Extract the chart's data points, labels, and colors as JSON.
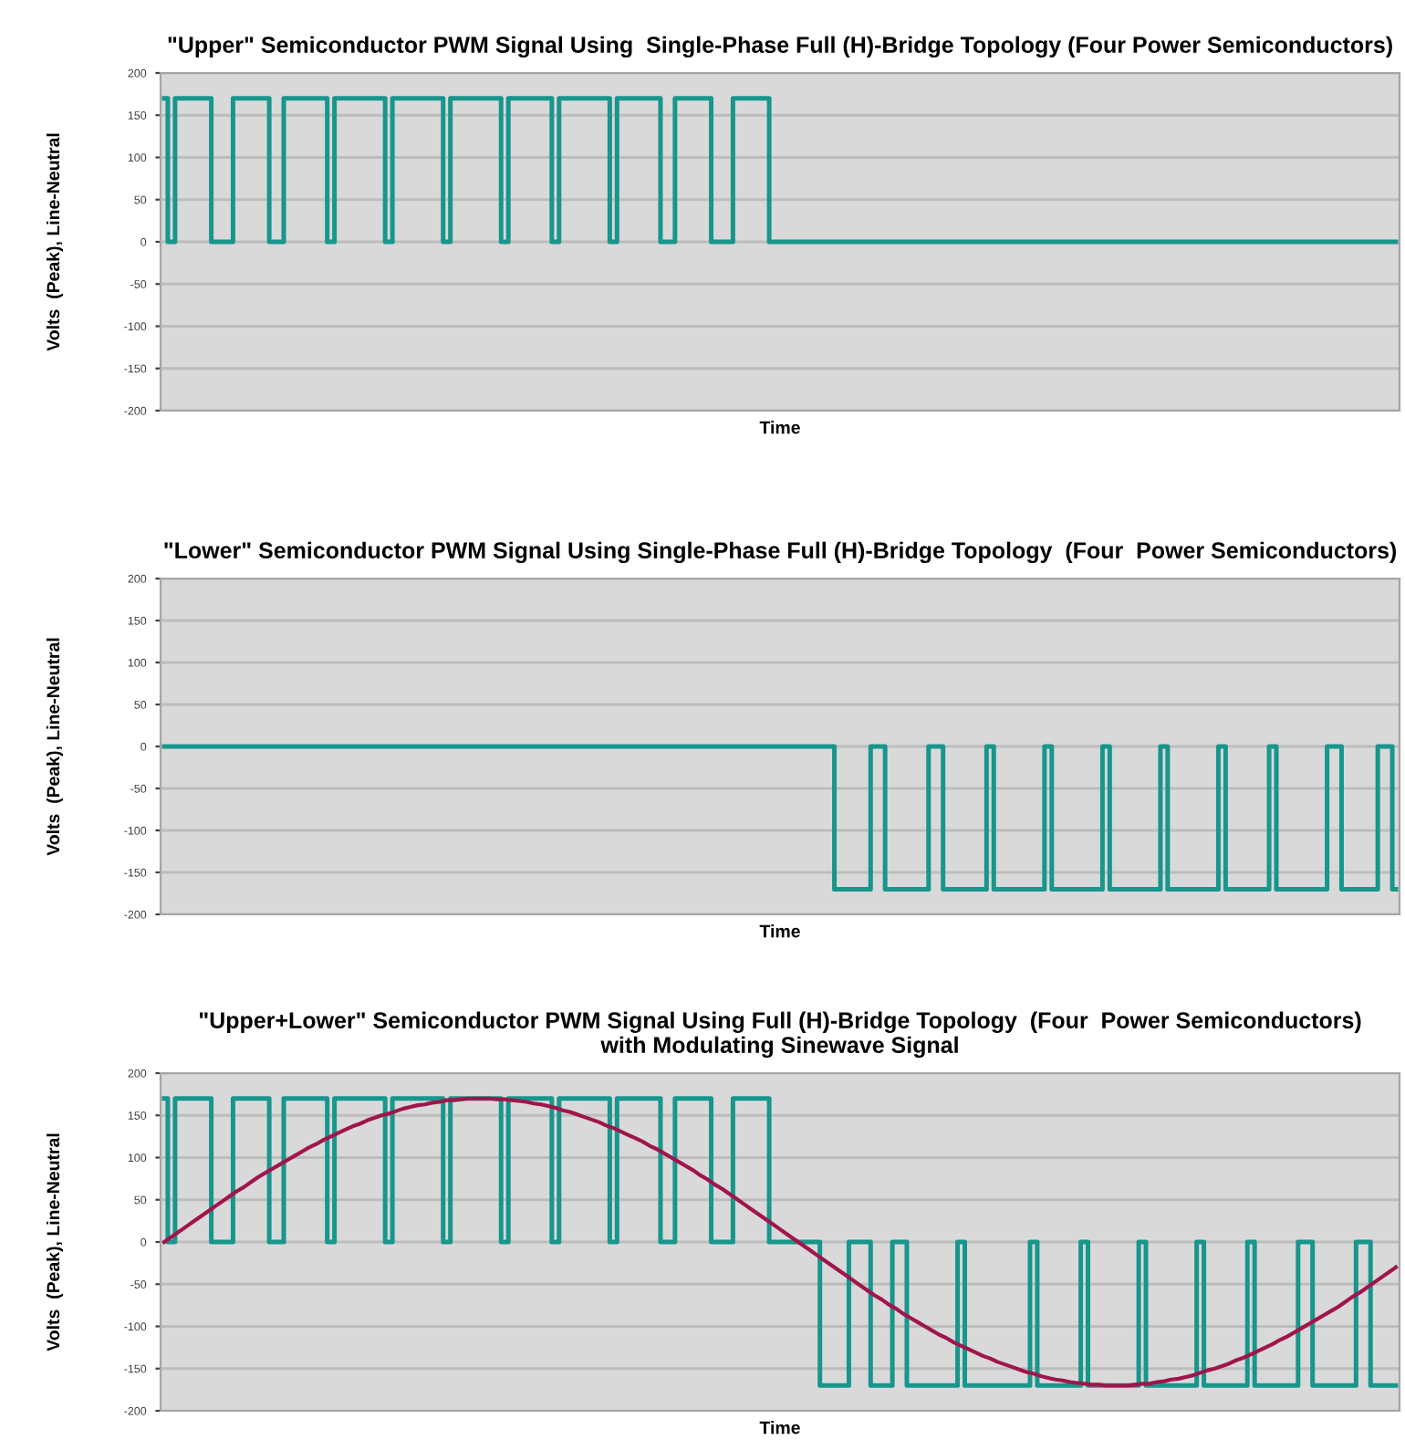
{
  "chart_data": [
    {
      "type": "step",
      "title": "\"Upper\" Semiconductor PWM Signal Using  Single-Phase Full (H)-Bridge Topology (Four Power Semiconductors)",
      "xlabel": "Time",
      "ylabel": "Volts  (Peak), Line-Neutral",
      "categories": [
        null,
        null,
        null,
        null,
        null,
        null,
        null,
        null,
        null,
        null,
        null,
        null,
        null,
        null,
        null,
        null,
        null,
        null,
        null,
        null,
        null,
        null,
        null,
        null,
        null,
        null,
        null,
        null,
        null,
        null,
        null,
        null,
        null,
        null,
        null,
        null,
        null,
        null,
        null,
        null,
        null,
        null,
        null,
        null,
        null,
        null,
        null,
        null,
        null,
        null,
        null,
        null,
        null,
        null,
        null,
        null,
        null,
        null,
        null,
        null,
        null,
        null,
        null,
        null,
        null,
        null,
        null,
        null,
        null,
        null,
        null,
        null,
        null,
        null,
        null,
        null,
        null,
        null,
        null,
        null,
        null,
        null,
        null,
        null,
        null,
        null,
        null,
        null,
        null,
        null,
        null,
        null,
        null,
        null,
        null,
        null,
        null,
        null,
        null,
        null,
        null,
        null,
        null,
        null,
        null,
        null,
        null,
        null,
        null,
        null,
        null,
        null,
        null,
        null,
        null,
        null,
        null,
        null,
        null,
        null,
        null,
        null,
        null,
        null,
        null,
        null,
        null,
        null,
        null,
        null,
        null,
        null,
        null,
        null,
        null,
        null,
        null,
        null,
        null,
        null,
        null,
        null,
        null,
        null,
        null,
        null,
        null,
        null,
        null,
        null,
        null,
        null,
        null,
        null,
        null,
        null,
        null,
        null,
        null,
        null,
        null,
        null,
        null,
        null,
        null,
        null,
        null,
        null,
        null,
        null,
        null
      ],
      "series": [
        {
          "color": "#17968c",
          "values": [
            170,
            0,
            170,
            170,
            170,
            170,
            170,
            0,
            0,
            0,
            170,
            170,
            170,
            170,
            170,
            0,
            0,
            170,
            170,
            170,
            170,
            170,
            170,
            0,
            170,
            170,
            170,
            170,
            170,
            170,
            170,
            0,
            170,
            170,
            170,
            170,
            170,
            170,
            170,
            0,
            170,
            170,
            170,
            170,
            170,
            170,
            170,
            0,
            170,
            170,
            170,
            170,
            170,
            170,
            0,
            170,
            170,
            170,
            170,
            170,
            170,
            170,
            0,
            170,
            170,
            170,
            170,
            170,
            170,
            0,
            0,
            170,
            170,
            170,
            170,
            170,
            0,
            0,
            0,
            170,
            170,
            170,
            170,
            170,
            0,
            0,
            0,
            0,
            0,
            0,
            0,
            0,
            0,
            0,
            0,
            0,
            0,
            0,
            0,
            0,
            0,
            0,
            0,
            0,
            0,
            0,
            0,
            0,
            0,
            0,
            0,
            0,
            0,
            0,
            0,
            0,
            0,
            0,
            0,
            0,
            0,
            0,
            0,
            0,
            0,
            0,
            0,
            0,
            0,
            0,
            0,
            0,
            0,
            0,
            0,
            0,
            0,
            0,
            0,
            0,
            0,
            0,
            0,
            0,
            0,
            0,
            0,
            0,
            0,
            0,
            0,
            0,
            0,
            0,
            0,
            0,
            0,
            0,
            0,
            0,
            0,
            0,
            0,
            0,
            0,
            0,
            0,
            0,
            0,
            0,
            0
          ]
        }
      ],
      "ylim": [
        -200,
        200
      ],
      "yticks": [
        -200,
        -150,
        -100,
        -50,
        0,
        50,
        100,
        150,
        200
      ],
      "grid": "y",
      "tick_labels": "y"
    },
    {
      "type": "step",
      "title": "\"Lower\" Semiconductor PWM Signal Using Single-Phase Full (H)-Bridge Topology  (Four  Power Semiconductors)",
      "xlabel": "Time",
      "ylabel": "Volts  (Peak), Line-Neutral",
      "categories": [
        null,
        null,
        null,
        null,
        null,
        null,
        null,
        null,
        null,
        null,
        null,
        null,
        null,
        null,
        null,
        null,
        null,
        null,
        null,
        null,
        null,
        null,
        null,
        null,
        null,
        null,
        null,
        null,
        null,
        null,
        null,
        null,
        null,
        null,
        null,
        null,
        null,
        null,
        null,
        null,
        null,
        null,
        null,
        null,
        null,
        null,
        null,
        null,
        null,
        null,
        null,
        null,
        null,
        null,
        null,
        null,
        null,
        null,
        null,
        null,
        null,
        null,
        null,
        null,
        null,
        null,
        null,
        null,
        null,
        null,
        null,
        null,
        null,
        null,
        null,
        null,
        null,
        null,
        null,
        null,
        null,
        null,
        null,
        null,
        null,
        null,
        null,
        null,
        null,
        null,
        null,
        null,
        null,
        null,
        null,
        null,
        null,
        null,
        null,
        null,
        null,
        null,
        null,
        null,
        null,
        null,
        null,
        null,
        null,
        null,
        null,
        null,
        null,
        null,
        null,
        null,
        null,
        null,
        null,
        null,
        null,
        null,
        null,
        null,
        null,
        null,
        null,
        null,
        null,
        null,
        null,
        null,
        null,
        null,
        null,
        null,
        null,
        null,
        null,
        null,
        null,
        null,
        null,
        null,
        null,
        null,
        null,
        null,
        null,
        null,
        null,
        null,
        null,
        null,
        null,
        null,
        null,
        null,
        null,
        null,
        null,
        null,
        null,
        null,
        null,
        null,
        null,
        null,
        null,
        null,
        null
      ],
      "series": [
        {
          "color": "#17968c",
          "values": [
            0,
            0,
            0,
            0,
            0,
            0,
            0,
            0,
            0,
            0,
            0,
            0,
            0,
            0,
            0,
            0,
            0,
            0,
            0,
            0,
            0,
            0,
            0,
            0,
            0,
            0,
            0,
            0,
            0,
            0,
            0,
            0,
            0,
            0,
            0,
            0,
            0,
            0,
            0,
            0,
            0,
            0,
            0,
            0,
            0,
            0,
            0,
            0,
            0,
            0,
            0,
            0,
            0,
            0,
            0,
            0,
            0,
            0,
            0,
            0,
            0,
            0,
            0,
            0,
            0,
            0,
            0,
            0,
            0,
            0,
            0,
            0,
            0,
            0,
            0,
            0,
            0,
            0,
            0,
            0,
            0,
            0,
            0,
            0,
            0,
            0,
            0,
            0,
            0,
            0,
            0,
            0,
            0,
            -170,
            -170,
            -170,
            -170,
            -170,
            0,
            0,
            -170,
            -170,
            -170,
            -170,
            -170,
            -170,
            0,
            0,
            -170,
            -170,
            -170,
            -170,
            -170,
            -170,
            0,
            -170,
            -170,
            -170,
            -170,
            -170,
            -170,
            -170,
            0,
            -170,
            -170,
            -170,
            -170,
            -170,
            -170,
            -170,
            0,
            -170,
            -170,
            -170,
            -170,
            -170,
            -170,
            -170,
            0,
            -170,
            -170,
            -170,
            -170,
            -170,
            -170,
            -170,
            0,
            -170,
            -170,
            -170,
            -170,
            -170,
            -170,
            0,
            -170,
            -170,
            -170,
            -170,
            -170,
            -170,
            -170,
            0,
            0,
            -170,
            -170,
            -170,
            -170,
            -170,
            0,
            0,
            -170
          ]
        }
      ],
      "ylim": [
        -200,
        200
      ],
      "yticks": [
        -200,
        -150,
        -100,
        -50,
        0,
        50,
        100,
        150,
        200
      ],
      "grid": "y",
      "tick_labels": "y"
    },
    {
      "type": "step",
      "title": "\"Upper+Lower\" Semiconductor PWM Signal Using Full (H)-Bridge Topology  (Four  Power Semiconductors)\nwith Modulating Sinewave Signal",
      "xlabel": "Time",
      "ylabel": "Volts  (Peak), Line-Neutral",
      "categories": [
        null,
        null,
        null,
        null,
        null,
        null,
        null,
        null,
        null,
        null,
        null,
        null,
        null,
        null,
        null,
        null,
        null,
        null,
        null,
        null,
        null,
        null,
        null,
        null,
        null,
        null,
        null,
        null,
        null,
        null,
        null,
        null,
        null,
        null,
        null,
        null,
        null,
        null,
        null,
        null,
        null,
        null,
        null,
        null,
        null,
        null,
        null,
        null,
        null,
        null,
        null,
        null,
        null,
        null,
        null,
        null,
        null,
        null,
        null,
        null,
        null,
        null,
        null,
        null,
        null,
        null,
        null,
        null,
        null,
        null,
        null,
        null,
        null,
        null,
        null,
        null,
        null,
        null,
        null,
        null,
        null,
        null,
        null,
        null,
        null,
        null,
        null,
        null,
        null,
        null,
        null,
        null,
        null,
        null,
        null,
        null,
        null,
        null,
        null,
        null,
        null,
        null,
        null,
        null,
        null,
        null,
        null,
        null,
        null,
        null,
        null,
        null,
        null,
        null,
        null,
        null,
        null,
        null,
        null,
        null,
        null,
        null,
        null,
        null,
        null,
        null,
        null,
        null,
        null,
        null,
        null,
        null,
        null,
        null,
        null,
        null,
        null,
        null,
        null,
        null,
        null,
        null,
        null,
        null,
        null,
        null,
        null,
        null,
        null,
        null,
        null,
        null,
        null,
        null,
        null,
        null,
        null,
        null,
        null,
        null,
        null,
        null,
        null,
        null,
        null,
        null,
        null,
        null,
        null,
        null,
        null
      ],
      "series": [
        {
          "color": "#17968c",
          "values": [
            170,
            0,
            170,
            170,
            170,
            170,
            170,
            0,
            0,
            0,
            170,
            170,
            170,
            170,
            170,
            0,
            0,
            170,
            170,
            170,
            170,
            170,
            170,
            0,
            170,
            170,
            170,
            170,
            170,
            170,
            170,
            0,
            170,
            170,
            170,
            170,
            170,
            170,
            170,
            0,
            170,
            170,
            170,
            170,
            170,
            170,
            170,
            0,
            170,
            170,
            170,
            170,
            170,
            170,
            0,
            170,
            170,
            170,
            170,
            170,
            170,
            170,
            0,
            170,
            170,
            170,
            170,
            170,
            170,
            0,
            0,
            170,
            170,
            170,
            170,
            170,
            0,
            0,
            0,
            170,
            170,
            170,
            170,
            170,
            0,
            0,
            0,
            0,
            0,
            0,
            0,
            -170,
            -170,
            -170,
            -170,
            0,
            0,
            0,
            -170,
            -170,
            -170,
            0,
            0,
            -170,
            -170,
            -170,
            -170,
            -170,
            -170,
            -170,
            0,
            -170,
            -170,
            -170,
            -170,
            -170,
            -170,
            -170,
            -170,
            -170,
            0,
            -170,
            -170,
            -170,
            -170,
            -170,
            -170,
            0,
            -170,
            -170,
            -170,
            -170,
            -170,
            -170,
            -170,
            0,
            -170,
            -170,
            -170,
            -170,
            -170,
            -170,
            -170,
            0,
            -170,
            -170,
            -170,
            -170,
            -170,
            -170,
            0,
            -170,
            -170,
            -170,
            -170,
            -170,
            -170,
            0,
            0,
            -170,
            -170,
            -170,
            -170,
            -170,
            -170,
            0,
            0,
            -170,
            -170,
            -170,
            -170
          ]
        },
        {
          "type": "line",
          "color": "#a0154b",
          "values": [
            0,
            6,
            12,
            18,
            24,
            30,
            36,
            42,
            48,
            54,
            60,
            65,
            71,
            77,
            82,
            87,
            92,
            97,
            102,
            107,
            112,
            116,
            121,
            125,
            129,
            133,
            137,
            140,
            144,
            147,
            150,
            152,
            155,
            158,
            160,
            162,
            163,
            165,
            166,
            168,
            168,
            169,
            170,
            170,
            170,
            170,
            169,
            169,
            168,
            167,
            166,
            164,
            163,
            161,
            159,
            156,
            154,
            151,
            148,
            145,
            142,
            138,
            135,
            131,
            127,
            123,
            119,
            114,
            110,
            105,
            100,
            95,
            90,
            85,
            79,
            74,
            68,
            63,
            57,
            51,
            45,
            39,
            33,
            27,
            21,
            15,
            9,
            3,
            -3,
            -9,
            -15,
            -21,
            -27,
            -33,
            -39,
            -45,
            -51,
            -57,
            -63,
            -68,
            -74,
            -79,
            -85,
            -90,
            -95,
            -100,
            -105,
            -110,
            -114,
            -119,
            -123,
            -127,
            -131,
            -135,
            -138,
            -142,
            -145,
            -148,
            -151,
            -154,
            -156,
            -159,
            -161,
            -163,
            -164,
            -166,
            -167,
            -168,
            -169,
            -169,
            -170,
            -170,
            -170,
            -170,
            -169,
            -168,
            -168,
            -166,
            -165,
            -163,
            -162,
            -160,
            -158,
            -155,
            -152,
            -150,
            -147,
            -144,
            -140,
            -137,
            -133,
            -129,
            -125,
            -121,
            -116,
            -112,
            -107,
            -102,
            -97,
            -92,
            -87,
            -82,
            -77,
            -71,
            -65,
            -60,
            -54,
            -48,
            -42,
            -36,
            -30
          ]
        }
      ],
      "ylim": [
        -200,
        200
      ],
      "yticks": [
        -200,
        -150,
        -100,
        -50,
        0,
        50,
        100,
        150,
        200
      ],
      "grid": "y",
      "tick_labels": "y"
    }
  ]
}
